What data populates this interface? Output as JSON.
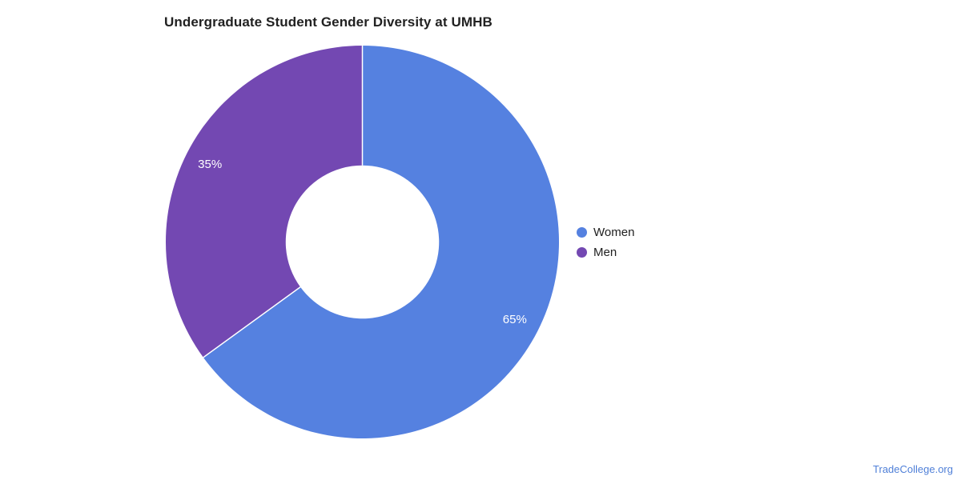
{
  "title": {
    "text": "Undergraduate Student Gender Diversity at UMHB",
    "color": "#212121"
  },
  "footer": {
    "link_text": "TradeCollege.org",
    "color": "#5080d8"
  },
  "legend": {
    "position": "right",
    "items": [
      {
        "label": "Women",
        "color": "#5581e0"
      },
      {
        "label": "Men",
        "color": "#7348b2"
      }
    ]
  },
  "chart_data": {
    "type": "pie",
    "subtype": "donut",
    "title": "Undergraduate Student Gender Diversity at UMHB",
    "categories": [
      "Women",
      "Men"
    ],
    "values": [
      65,
      35
    ],
    "unit": "percent",
    "slice_labels": [
      "65%",
      "35%"
    ],
    "colors": [
      "#5581e0",
      "#7348b2"
    ],
    "slice_label_color": "#ffffff",
    "divider_color": "#ffffff",
    "start_angle_deg": 0,
    "direction": "clockwise",
    "inner_radius_ratio": 0.39,
    "legend_position": "right",
    "background": "#ffffff"
  }
}
